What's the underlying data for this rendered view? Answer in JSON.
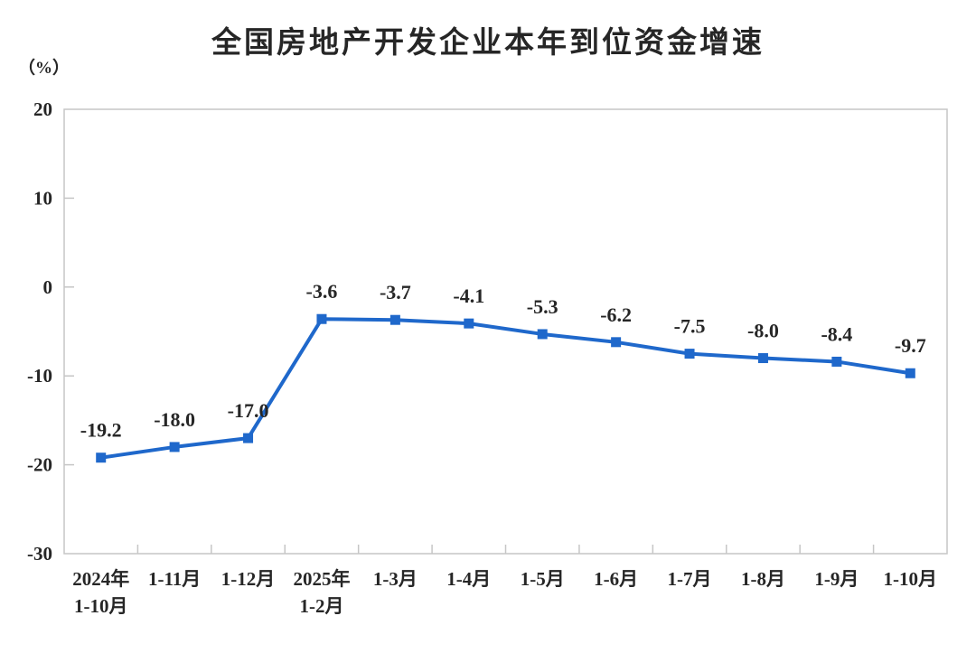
{
  "chart_data": {
    "type": "line",
    "title": "全国房地产开发企业本年到位资金增速",
    "unit_label": "（%）",
    "categories": [
      "2024年\n1-10月",
      "1-11月",
      "1-12月",
      "2025年\n1-2月",
      "1-3月",
      "1-4月",
      "1-5月",
      "1-6月",
      "1-7月",
      "1-8月",
      "1-9月",
      "1-10月"
    ],
    "values": [
      -19.2,
      -18.0,
      -17.0,
      -3.6,
      -3.7,
      -4.1,
      -5.3,
      -6.2,
      -7.5,
      -8.0,
      -8.4,
      -9.7
    ],
    "point_labels": [
      "-19.2",
      "-18.0",
      "-17.0",
      "-3.6",
      "-3.7",
      "-4.1",
      "-5.3",
      "-6.2",
      "-7.5",
      "-8.0",
      "-8.4",
      "-9.7"
    ],
    "ylabel": "",
    "xlabel": "",
    "ylim": [
      -30,
      20
    ],
    "yticks": [
      20,
      10,
      0,
      -10,
      -20,
      -30
    ],
    "grid": false,
    "legend": "none",
    "marker": "square",
    "colors": {
      "line": "#1F68CB",
      "marker": "#1F68CB",
      "axis_border": "#C6C6C6",
      "text": "#262626",
      "background": "#FFFFFF"
    }
  }
}
